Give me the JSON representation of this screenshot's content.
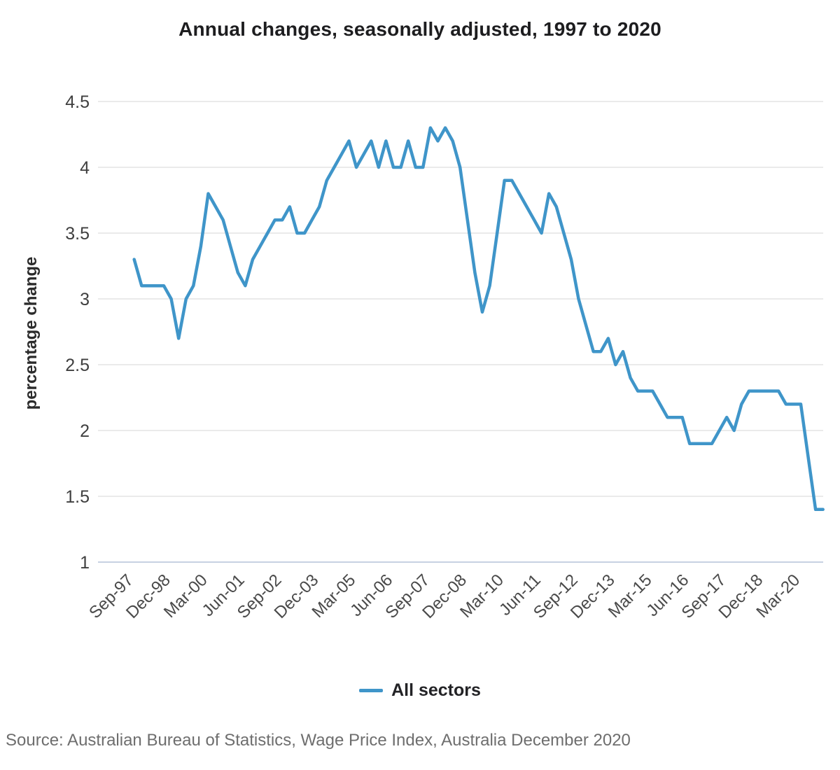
{
  "title": "Annual changes, seasonally adjusted, 1997 to 2020",
  "legend": {
    "label": "All sectors",
    "swatch_color": "#3f95c9"
  },
  "source": "Source: Australian Bureau of Statistics, Wage Price Index, Australia December 2020",
  "chart_data": {
    "type": "line",
    "title": "Annual changes, seasonally adjusted, 1997 to 2020",
    "xlabel": "",
    "ylabel": "percentage change",
    "ylim": [
      1,
      4.5
    ],
    "yticks": [
      4.5,
      4,
      3.5,
      3,
      2.5,
      2,
      1.5,
      1
    ],
    "grid": true,
    "legend_position": "bottom-center",
    "x_frequency": "quarterly",
    "x_start": "Sep-97",
    "x_end": "Dec-20",
    "x_tick_every": 5,
    "x_tick_labels": [
      "Sep-97",
      "Dec-98",
      "Mar-00",
      "Jun-01",
      "Sep-02",
      "Dec-03",
      "Mar-05",
      "Jun-06",
      "Sep-07",
      "Dec-08",
      "Mar-10",
      "Jun-11",
      "Sep-12",
      "Dec-13",
      "Mar-15",
      "Jun-16",
      "Sep-17",
      "Dec-18",
      "Mar-20"
    ],
    "series": [
      {
        "name": "All sectors",
        "color": "#3f95c9",
        "values": [
          3.3,
          3.1,
          3.1,
          3.1,
          3.1,
          3.0,
          2.7,
          3.0,
          3.1,
          3.4,
          3.8,
          3.7,
          3.6,
          3.4,
          3.2,
          3.1,
          3.3,
          3.4,
          3.5,
          3.6,
          3.6,
          3.7,
          3.5,
          3.5,
          3.6,
          3.7,
          3.9,
          4.0,
          4.1,
          4.2,
          4.0,
          4.1,
          4.2,
          4.0,
          4.2,
          4.0,
          4.0,
          4.2,
          4.0,
          4.0,
          4.3,
          4.2,
          4.3,
          4.2,
          4.0,
          3.6,
          3.2,
          2.9,
          3.1,
          3.5,
          3.9,
          3.9,
          3.8,
          3.7,
          3.6,
          3.5,
          3.8,
          3.7,
          3.5,
          3.3,
          3.0,
          2.8,
          2.6,
          2.6,
          2.7,
          2.5,
          2.6,
          2.4,
          2.3,
          2.3,
          2.3,
          2.2,
          2.1,
          2.1,
          2.1,
          1.9,
          1.9,
          1.9,
          1.9,
          2.0,
          2.1,
          2.0,
          2.2,
          2.3,
          2.3,
          2.3,
          2.3,
          2.3,
          2.2,
          2.2,
          2.2,
          1.8,
          1.4,
          1.4
        ]
      }
    ],
    "colors": {
      "line": "#3f95c9",
      "gridline": "#e3e3e3",
      "baseline": "#c7d1e2",
      "tick_label": "#4a4a4a",
      "axis_title": "#2b2b2b"
    }
  }
}
